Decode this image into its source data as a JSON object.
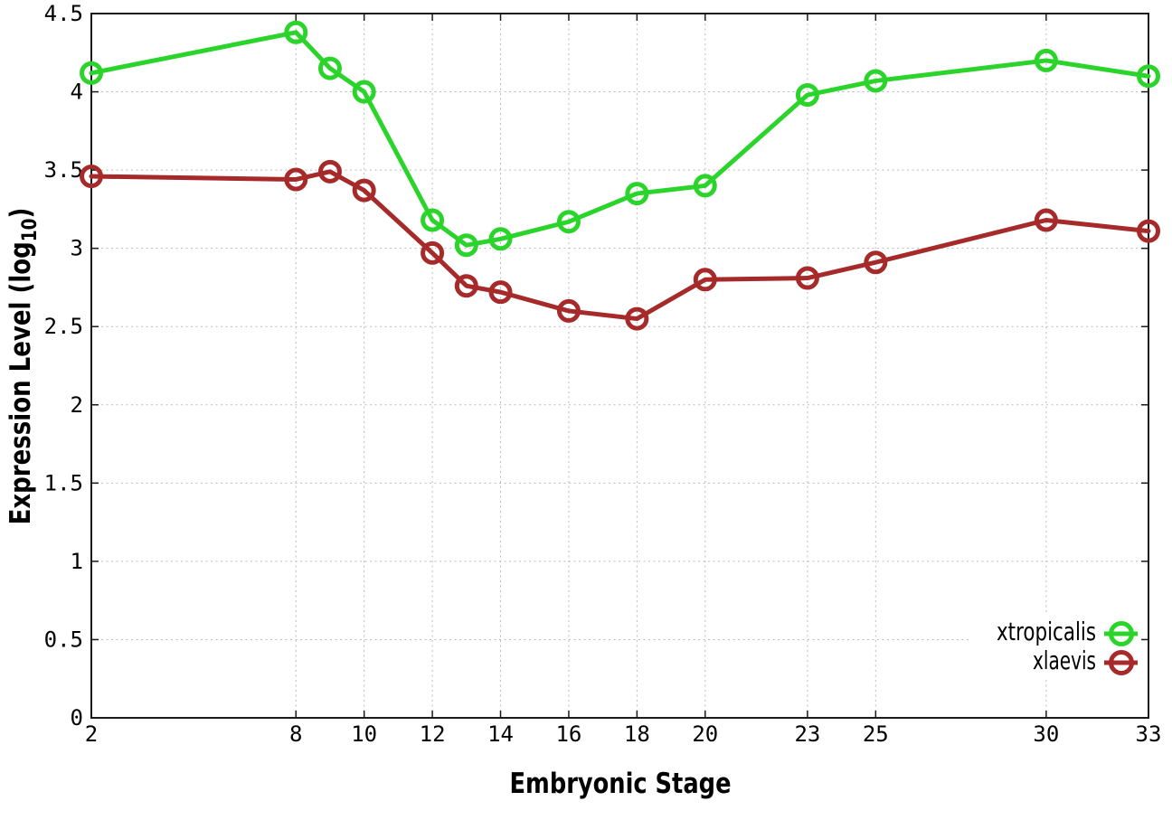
{
  "figure": {
    "background": "#ffffff",
    "colors": {
      "grid": "#bbbbbb",
      "border": "#1a1a1a",
      "tick_text": "#000000",
      "label_text": "#000000"
    }
  },
  "chart_data": {
    "type": "line",
    "title": "",
    "xlabel": "Embryonic Stage",
    "ylabel": "Expression Level (log10)",
    "xlim": [
      2,
      33
    ],
    "ylim": [
      0,
      4.5
    ],
    "x_ticks": [
      2,
      8,
      10,
      12,
      14,
      16,
      18,
      20,
      23,
      25,
      30,
      33
    ],
    "y_ticks": [
      0,
      0.5,
      1,
      1.5,
      2,
      2.5,
      3,
      3.5,
      4,
      4.5
    ],
    "grid": true,
    "marker": "open-circle",
    "legend_position": "inside-bottom-right",
    "x": [
      2,
      8,
      9,
      10,
      12,
      13,
      14,
      16,
      18,
      20,
      23,
      25,
      30,
      33
    ],
    "series": [
      {
        "name": "xtropicalis",
        "color": "#2bd42b",
        "values": [
          4.12,
          4.38,
          4.15,
          4.0,
          3.18,
          3.02,
          3.06,
          3.17,
          3.35,
          3.4,
          3.98,
          4.07,
          4.2,
          4.1
        ]
      },
      {
        "name": "xlaevis",
        "color": "#a62a2a",
        "values": [
          3.46,
          3.44,
          3.49,
          3.37,
          2.97,
          2.76,
          2.72,
          2.6,
          2.55,
          2.8,
          2.81,
          2.91,
          3.18,
          3.11
        ]
      }
    ]
  }
}
